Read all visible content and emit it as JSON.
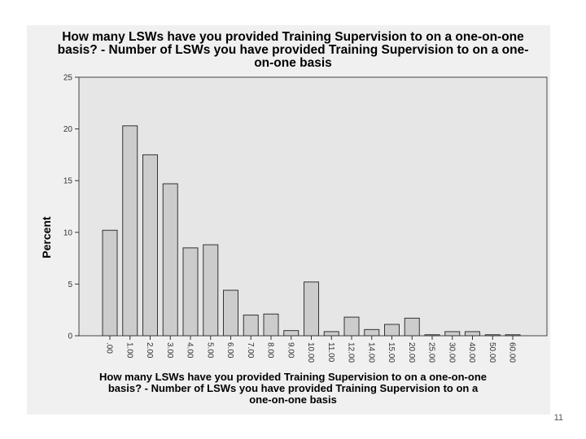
{
  "slide": {
    "number": "11"
  },
  "chart_data": {
    "type": "bar",
    "title": "How many LSWs have you provided Training Supervision to on a one-on-one basis? - Number of LSWs you have provided Training Supervision to on a one-on-one basis",
    "title_lines": [
      "How many LSWs have you provided Training Supervision to on a one-on-one",
      "basis? - Number of LSWs you have provided Training Supervision to on a one-",
      "on-one basis"
    ],
    "xlabel": "How many LSWs have you provided Training Supervision to on a one-on-one basis? - Number of LSWs you have provided Training Supervision to on a one-on-one basis",
    "xlabel_lines": [
      "How many LSWs have you provided Training Supervision to on a one-on-one",
      "basis? - Number of LSWs you have provided Training Supervision to on a",
      "one-on-one basis"
    ],
    "ylabel": "Percent",
    "ylim": [
      0,
      25
    ],
    "yticks": [
      "0",
      "5",
      "10",
      "15",
      "20",
      "25"
    ],
    "grid": false,
    "categories": [
      ".00",
      "1.00",
      "2.00",
      "3.00",
      "4.00",
      "5.00",
      "6.00",
      "7.00",
      "8.00",
      "9.00",
      "10.00",
      "11.00",
      "12.00",
      "14.00",
      "15.00",
      "20.00",
      "25.00",
      "30.00",
      "40.00",
      "50.00",
      "60.00"
    ],
    "values": [
      10.2,
      20.3,
      17.5,
      14.7,
      8.5,
      8.8,
      4.4,
      2.0,
      2.1,
      0.5,
      5.2,
      0.4,
      1.8,
      0.6,
      1.1,
      1.7,
      0.1,
      0.4,
      0.4,
      0.1,
      0.1
    ],
    "colors": {
      "bar_fill": "#cccccc",
      "bar_stroke": "#333333",
      "plot_bg": "#e6e6e6",
      "frame_bg": "#f0f0f0"
    }
  }
}
